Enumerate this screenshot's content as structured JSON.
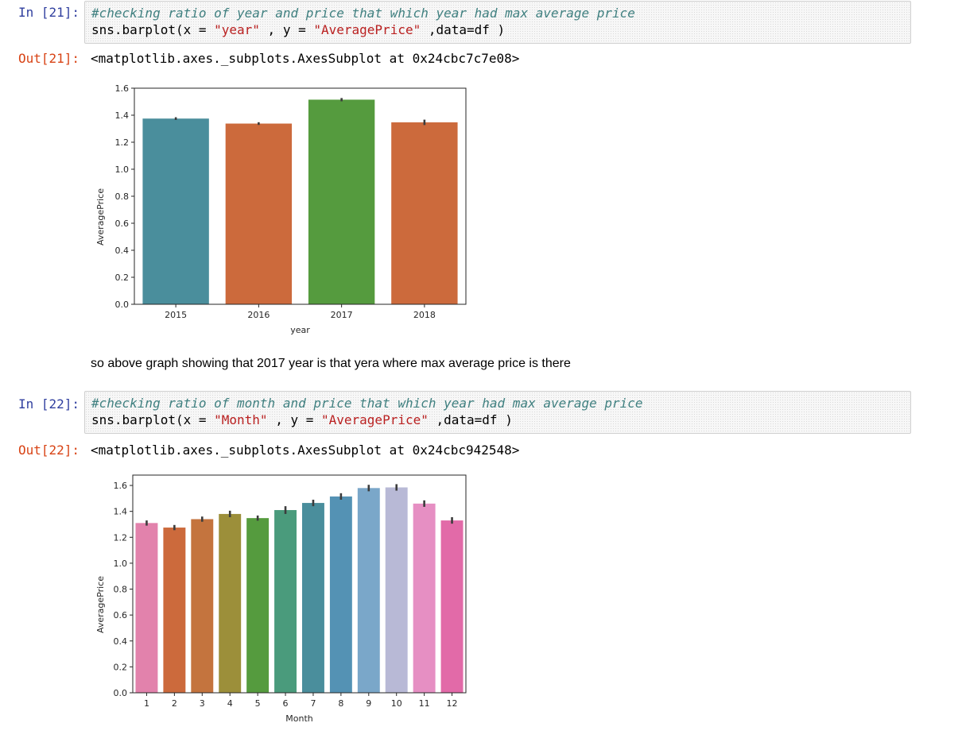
{
  "cells": [
    {
      "in_prompt": "In [21]:",
      "code_comment": "#checking ratio of year and price that which year had max average price",
      "code_parts": [
        "sns.barplot(x = ",
        "\"year\"",
        " , y = ",
        "\"AveragePrice\"",
        " ,data=df )"
      ],
      "out_prompt": "Out[21]:",
      "out_text": "<matplotlib.axes._subplots.AxesSubplot at 0x24cbc7c7e08>"
    },
    {
      "in_prompt": "In [22]:",
      "code_comment": "#checking ratio of month and price that which year had max average price",
      "code_parts": [
        "sns.barplot(x = ",
        "\"Month\"",
        " , y = ",
        "\"AveragePrice\"",
        " ,data=df )"
      ],
      "out_prompt": "Out[22]:",
      "out_text": "<matplotlib.axes._subplots.AxesSubplot at 0x24cbc942548>"
    }
  ],
  "markdown_text": "so above graph showing that 2017 year is that yera where max average price is there",
  "chart_data": [
    {
      "type": "bar",
      "xlabel": "year",
      "ylabel": "AveragePrice",
      "categories": [
        "2015",
        "2016",
        "2017",
        "2018"
      ],
      "values": [
        1.375,
        1.338,
        1.515,
        1.347
      ],
      "errors": [
        0.01,
        0.01,
        0.012,
        0.02
      ],
      "colors": [
        "#4a8e9c",
        "#cc6a3c",
        "#559b3e",
        "#cc6a3c"
      ],
      "ylim": [
        0,
        1.6
      ],
      "yticks": [
        0.0,
        0.2,
        0.4,
        0.6,
        0.8,
        1.0,
        1.2,
        1.4,
        1.6
      ],
      "grid": false
    },
    {
      "type": "bar",
      "xlabel": "Month",
      "ylabel": "AveragePrice",
      "categories": [
        "1",
        "2",
        "3",
        "4",
        "5",
        "6",
        "7",
        "8",
        "9",
        "10",
        "11",
        "12"
      ],
      "values": [
        1.31,
        1.275,
        1.34,
        1.38,
        1.348,
        1.41,
        1.465,
        1.515,
        1.58,
        1.585,
        1.46,
        1.33
      ],
      "errors": [
        0.02,
        0.02,
        0.02,
        0.025,
        0.02,
        0.03,
        0.025,
        0.025,
        0.025,
        0.025,
        0.025,
        0.025
      ],
      "colors": [
        "#e282ac",
        "#cc6a3c",
        "#c4743e",
        "#9c8f3a",
        "#559b3e",
        "#4a9b7c",
        "#4a8e9c",
        "#5492b4",
        "#7aa7c9",
        "#b8b9d6",
        "#e68fc3",
        "#e26aa8"
      ],
      "ylim": [
        0,
        1.68
      ],
      "yticks": [
        0.0,
        0.2,
        0.4,
        0.6,
        0.8,
        1.0,
        1.2,
        1.4,
        1.6
      ],
      "grid": false
    }
  ]
}
